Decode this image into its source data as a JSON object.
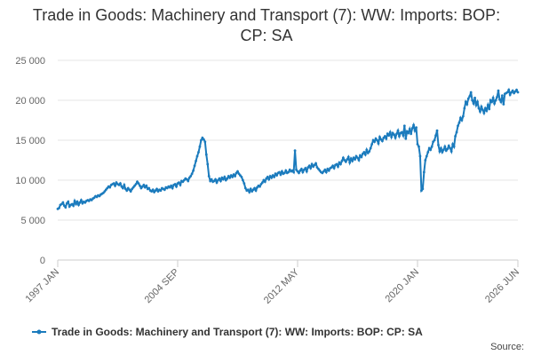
{
  "chart_data": {
    "type": "line",
    "title": "Trade in Goods: Machinery and Transport (7): WW: Imports: BOP: CP: SA",
    "source": "Source:",
    "categories": [
      "1997 JAN",
      null,
      null,
      null,
      null,
      null,
      null,
      null,
      null,
      null,
      null,
      null,
      null,
      null,
      null,
      null,
      null,
      null,
      null,
      null,
      null,
      null,
      null,
      null,
      null,
      null,
      null,
      null,
      null,
      null,
      null,
      null,
      null,
      null,
      null,
      null,
      null,
      null,
      null,
      null,
      null,
      null,
      null,
      null,
      null,
      null,
      null,
      null,
      null,
      null,
      null,
      null,
      null,
      null,
      null,
      null,
      null,
      null,
      null,
      null,
      null,
      null,
      null,
      null,
      null,
      null,
      null,
      null,
      null,
      null,
      null,
      null,
      null,
      null,
      null,
      null,
      null,
      null,
      null,
      null,
      null,
      null,
      null,
      null,
      null,
      null,
      null,
      null,
      null,
      null,
      null,
      null,
      "2004 SEP",
      null,
      null,
      null,
      null,
      null,
      null,
      null,
      null,
      null,
      null,
      null,
      null,
      null,
      null,
      null,
      null,
      null,
      null,
      null,
      null,
      null,
      null,
      null,
      null,
      null,
      null,
      null,
      null,
      null,
      null,
      null,
      null,
      null,
      null,
      null,
      null,
      null,
      null,
      null,
      null,
      null,
      null,
      null,
      null,
      null,
      null,
      null,
      null,
      null,
      null,
      null,
      null,
      null,
      null,
      null,
      null,
      null,
      null,
      null,
      null,
      null,
      null,
      null,
      null,
      null,
      null,
      null,
      null,
      null,
      null,
      null,
      null,
      null,
      null,
      null,
      null,
      null,
      null,
      null,
      null,
      null,
      null,
      null,
      null,
      null,
      null,
      null,
      null,
      null,
      null,
      null,
      "2012 MAY",
      null,
      null,
      null,
      null,
      null,
      null,
      null,
      null,
      null,
      null,
      null,
      null,
      null,
      null,
      null,
      null,
      null,
      null,
      null,
      null,
      null,
      null,
      null,
      null,
      null,
      null,
      null,
      null,
      null,
      null,
      null,
      null,
      null,
      null,
      null,
      null,
      null,
      null,
      null,
      null,
      null,
      null,
      null,
      null,
      null,
      null,
      null,
      null,
      null,
      null,
      null,
      null,
      null,
      null,
      null,
      null,
      null,
      null,
      null,
      null,
      null,
      null,
      null,
      null,
      null,
      null,
      null,
      null,
      null,
      null,
      null,
      null,
      null,
      null,
      null,
      null,
      null,
      null,
      null,
      null,
      null,
      null,
      null,
      null,
      null,
      null,
      null,
      null,
      null,
      null,
      null,
      "2020 JAN",
      null,
      null,
      null,
      null,
      null,
      null,
      null,
      null,
      null,
      null,
      null,
      null,
      null,
      null,
      null,
      null,
      null,
      null,
      null,
      null,
      null,
      null,
      null,
      null,
      null,
      null,
      null,
      null,
      null,
      null,
      null,
      null,
      null,
      null,
      null,
      null,
      null,
      null,
      null,
      null,
      null,
      null,
      null,
      null,
      null,
      null,
      null,
      null,
      null,
      null,
      null,
      null,
      null,
      null,
      null,
      null,
      null,
      null,
      null,
      null,
      null,
      null,
      null,
      null,
      null,
      null,
      null,
      null,
      null,
      null,
      null,
      null,
      null,
      null,
      null,
      null,
      "2026 JUN"
    ],
    "series": [
      {
        "name": "Trade in Goods: Machinery and Transport (7): WW: Imports: BOP: CP: SA",
        "color": "#1b7bbd",
        "values": [
          6400,
          6500,
          6900,
          7000,
          7200,
          6800,
          6600,
          7100,
          7300,
          6700,
          6900,
          7000,
          6800,
          7400,
          7000,
          7300,
          6900,
          7200,
          7500,
          7100,
          7300,
          7200,
          7400,
          7500,
          7400,
          7600,
          7500,
          7700,
          7800,
          8000,
          7900,
          8100,
          8000,
          8200,
          8300,
          8400,
          8600,
          8800,
          9000,
          9200,
          9100,
          9400,
          9500,
          9600,
          9300,
          9700,
          9500,
          9400,
          9600,
          9200,
          9000,
          9400,
          8900,
          8700,
          9000,
          8800,
          8600,
          8900,
          9100,
          9300,
          9500,
          9800,
          9600,
          9300,
          9000,
          9200,
          9400,
          9100,
          9300,
          8900,
          9000,
          8700,
          8600,
          8800,
          8500,
          8700,
          8900,
          8600,
          8800,
          8700,
          9000,
          8900,
          8800,
          9100,
          9000,
          9200,
          9100,
          9300,
          9000,
          9400,
          9500,
          9200,
          9600,
          9700,
          9400,
          9900,
          9800,
          10000,
          10200,
          10100,
          9900,
          10300,
          10500,
          10800,
          11200,
          11800,
          12400,
          13000,
          13500,
          14200,
          15000,
          15300,
          15100,
          14800,
          13200,
          12000,
          10500,
          9900,
          10100,
          9800,
          9900,
          10100,
          9700,
          10000,
          10200,
          9900,
          10300,
          10100,
          10400,
          10000,
          10200,
          10500,
          10300,
          10600,
          10400,
          10700,
          10500,
          10900,
          11100,
          10800,
          10600,
          10400,
          10000,
          9600,
          9000,
          8700,
          8800,
          8500,
          8900,
          8600,
          8800,
          9000,
          8700,
          9100,
          9300,
          9200,
          9500,
          9700,
          10000,
          9800,
          10200,
          10400,
          10100,
          10500,
          10300,
          10600,
          10400,
          10800,
          10600,
          10900,
          11000,
          10700,
          11100,
          10800,
          10900,
          11200,
          10900,
          11000,
          11300,
          11100,
          11200,
          11000,
          13700,
          11300,
          11100,
          10900,
          11200,
          11400,
          11000,
          11300,
          11500,
          11100,
          11600,
          11800,
          11500,
          12000,
          11700,
          11900,
          12100,
          11600,
          11400,
          11200,
          11000,
          10900,
          11100,
          11300,
          11000,
          11400,
          11200,
          11500,
          11600,
          11800,
          11500,
          11900,
          12000,
          11700,
          12200,
          12000,
          12400,
          12800,
          12500,
          12300,
          12600,
          12900,
          12200,
          12700,
          12400,
          12800,
          12600,
          13000,
          12800,
          12500,
          13100,
          12900,
          13300,
          13500,
          13200,
          13800,
          13400,
          13600,
          14000,
          14500,
          15000,
          14800,
          15200,
          15000,
          14600,
          15400,
          15100,
          14900,
          15300,
          15500,
          15200,
          15800,
          15600,
          16000,
          15400,
          15900,
          15700,
          15300,
          15800,
          16200,
          15500,
          15900,
          16000,
          15600,
          16800,
          15200,
          16100,
          15900,
          16400,
          15800,
          16500,
          16900,
          16200,
          16600,
          14500,
          14200,
          13000,
          8700,
          8900,
          11000,
          12500,
          13000,
          13500,
          14000,
          13800,
          14200,
          14800,
          15000,
          15600,
          16200,
          14400,
          13600,
          14000,
          13500,
          13800,
          14200,
          13700,
          13900,
          14300,
          14000,
          13600,
          14500,
          14200,
          15500,
          16000,
          16800,
          17200,
          17800,
          17500,
          18000,
          19000,
          19800,
          19500,
          20200,
          20500,
          21000,
          20000,
          19600,
          20300,
          19400,
          19800,
          19000,
          18600,
          19200,
          18800,
          18400,
          19000,
          18700,
          19400,
          18900,
          20000,
          19800,
          20300,
          19600,
          20000,
          20400,
          21200,
          20100,
          19800,
          20600,
          19500,
          20800,
          20900,
          21000,
          21300,
          20700,
          21000,
          21200,
          20900,
          21100,
          21300,
          21000
        ]
      }
    ],
    "ylim": [
      0,
      25000
    ],
    "yticks": [
      0,
      {
        "value": 5000,
        "label": "5 000"
      },
      {
        "value": 10000,
        "label": "10 000"
      },
      {
        "value": 15000,
        "label": "15 000"
      },
      {
        "value": 20000,
        "label": "20 000"
      },
      {
        "value": 25000,
        "label": "25 000"
      }
    ],
    "grid": true
  }
}
